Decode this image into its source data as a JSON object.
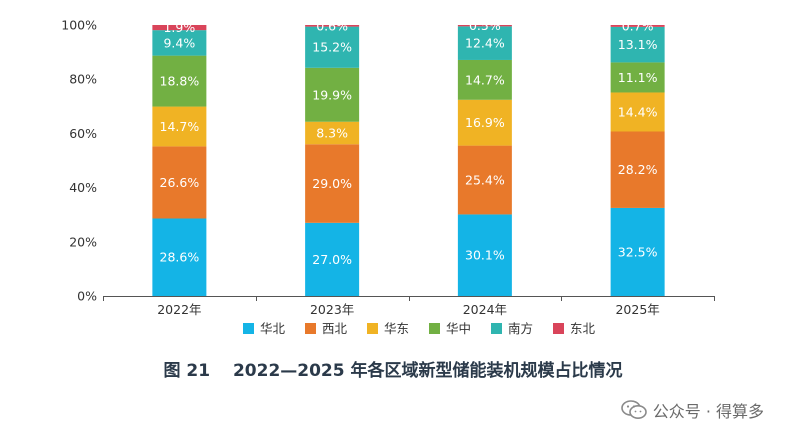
{
  "chart_data": {
    "type": "bar",
    "stacked": true,
    "categories": [
      "2022年",
      "2023年",
      "2024年",
      "2025年"
    ],
    "series": [
      {
        "name": "华北",
        "color": "#14b4e6",
        "values": [
          28.6,
          27.0,
          30.1,
          32.5
        ],
        "labels": [
          "28.6%",
          "27.0%",
          "30.1%",
          "32.5%"
        ]
      },
      {
        "name": "西北",
        "color": "#e8792b",
        "values": [
          26.6,
          29.0,
          25.4,
          28.2
        ],
        "labels": [
          "26.6%",
          "29.0%",
          "25.4%",
          "28.2%"
        ]
      },
      {
        "name": "华东",
        "color": "#f0b324",
        "values": [
          14.7,
          8.3,
          16.9,
          14.4
        ],
        "labels": [
          "14.7%",
          "8.3%",
          "16.9%",
          "14.4%"
        ]
      },
      {
        "name": "华中",
        "color": "#72b043",
        "values": [
          18.8,
          19.9,
          14.7,
          11.1
        ],
        "labels": [
          "18.8%",
          "19.9%",
          "14.7%",
          "11.1%"
        ]
      },
      {
        "name": "南方",
        "color": "#2fb5b0",
        "values": [
          9.4,
          15.2,
          12.4,
          13.1
        ],
        "labels": [
          "9.4%",
          "15.2%",
          "12.4%",
          "13.1%"
        ]
      },
      {
        "name": "东北",
        "color": "#d9445a",
        "values": [
          1.9,
          0.6,
          0.5,
          0.7
        ],
        "labels": [
          "1.9%",
          "0.6%",
          "0.5%",
          "0.7%"
        ]
      }
    ],
    "ylim": [
      0,
      100
    ],
    "yticks": [
      "0%",
      "20%",
      "40%",
      "60%",
      "80%",
      "100%"
    ],
    "legend_position": "bottom",
    "grid": false
  },
  "caption": "图 21　 2022—2025 年各区域新型储能装机规模占比情况",
  "watermark": {
    "text": "公众号 · 得算多",
    "icon": "wechat-icon"
  }
}
